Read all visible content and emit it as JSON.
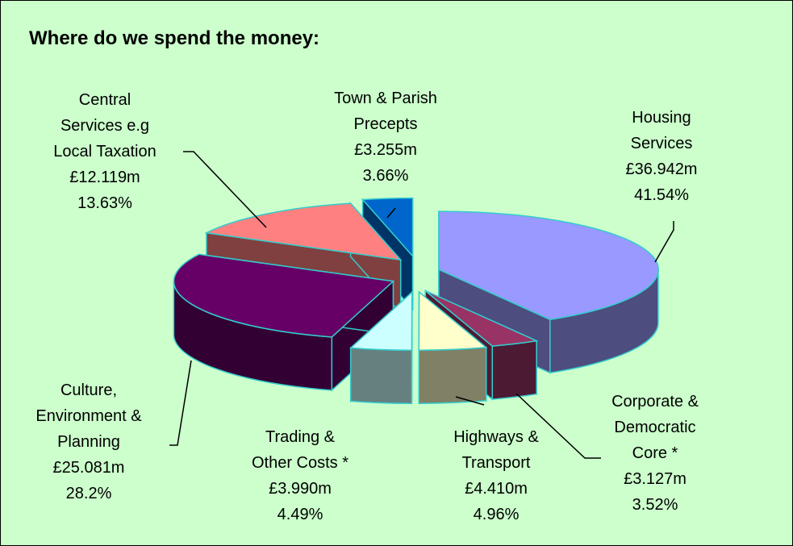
{
  "chart_data": {
    "type": "pie3d",
    "title": "Where do we spend the money:",
    "categories": [
      "Housing\nServices",
      "Corporate &\nDemocratic\nCore *",
      "Highways &\nTransport",
      "Trading &\nOther Costs *",
      "Culture,\nEnvironment &\nPlanning",
      "Central\nServices e.g\nLocal Taxation",
      "Town & Parish\nPrecepts"
    ],
    "amounts": [
      36.942,
      3.127,
      4.41,
      3.99,
      25.081,
      12.119,
      3.255
    ],
    "amount_labels": [
      "£36.942m",
      "£3.127m",
      "£4.410m",
      "£3.990m",
      "£25.081m",
      "£12.119m",
      "£3.255m"
    ],
    "values": [
      41.54,
      3.52,
      4.96,
      4.49,
      28.2,
      13.63,
      3.66
    ],
    "value_labels": [
      "41.54%",
      "3.52%",
      "4.96%",
      "4.49%",
      "28.2%",
      "13.63%",
      "3.66%"
    ],
    "colors": [
      "#9999ff",
      "#993366",
      "#ffffcc",
      "#ccffff",
      "#660066",
      "#ff8080",
      "#0066cc"
    ]
  }
}
